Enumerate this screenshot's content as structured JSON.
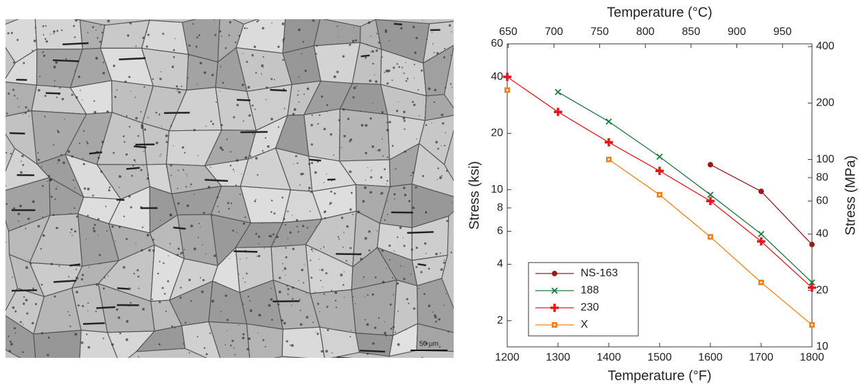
{
  "micrograph": {
    "scale_bar_label": "50 µm"
  },
  "chart_data": {
    "type": "line",
    "xlabel": "Temperature (°F)",
    "x2label": "Temperature (°C)",
    "ylabel": "Stress (ksi)",
    "y2label": "Stress (MPa)",
    "x": [
      1200,
      1300,
      1400,
      1500,
      1600,
      1700,
      1800
    ],
    "xlim": [
      1200,
      1800
    ],
    "xticks": [
      1200,
      1300,
      1400,
      1500,
      1600,
      1700,
      1800
    ],
    "x2lim": [
      648.9,
      982.2
    ],
    "x2ticks": [
      650,
      700,
      750,
      800,
      850,
      900,
      950
    ],
    "yscale": "log",
    "ylim": [
      1.45,
      60
    ],
    "yticks": [
      2,
      4,
      6,
      8,
      10,
      20,
      40,
      60
    ],
    "y2lim": [
      10,
      413.7
    ],
    "y2ticks": [
      10,
      20,
      40,
      60,
      80,
      100,
      200,
      400
    ],
    "legend": "lower left",
    "series": [
      {
        "name": "NS-163",
        "color": "#9a1a1a",
        "marker": "circle",
        "values": [
          null,
          null,
          null,
          null,
          13.6,
          9.8,
          5.1
        ]
      },
      {
        "name": "188",
        "color": "#1a7a3a",
        "marker": "x",
        "values": [
          null,
          33.2,
          23.1,
          15.0,
          9.4,
          5.8,
          3.2
        ]
      },
      {
        "name": "230",
        "color": "#e8141a",
        "marker": "plus",
        "values": [
          40,
          26,
          17.9,
          12.6,
          8.7,
          5.3,
          3.0
        ]
      },
      {
        "name": "X",
        "color": "#f57f17",
        "marker": "square",
        "values": [
          34,
          null,
          14.5,
          9.4,
          5.6,
          3.2,
          1.9
        ]
      }
    ]
  }
}
